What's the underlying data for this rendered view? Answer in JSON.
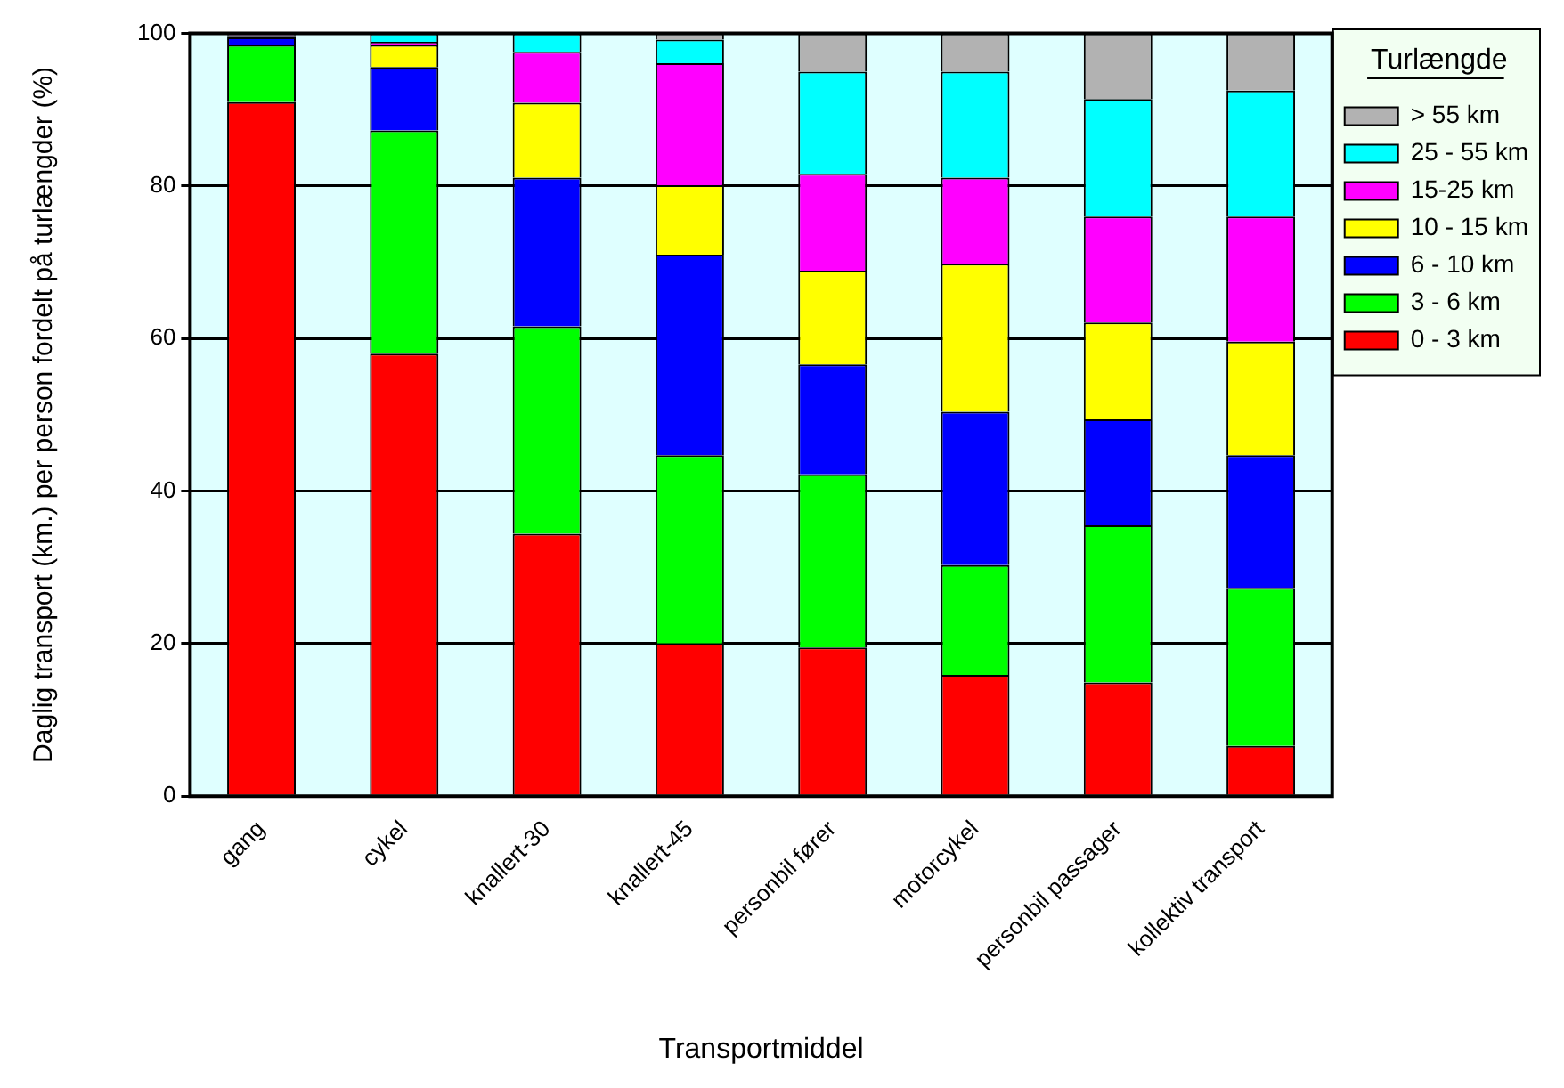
{
  "chart_data": {
    "type": "bar",
    "stacked": true,
    "xlabel": "Transportmiddel",
    "ylabel": "Daglig transport (km.) per person fordelt på turlængder (%)",
    "legend_title": "Turlængde",
    "legend": "right",
    "categories": [
      "gang",
      "cykel",
      "knallert-30",
      "knallert-45",
      "personbil fører",
      "motorcykel",
      "personbil passager",
      "kollektiv transport"
    ],
    "ylim": [
      0,
      100
    ],
    "yticks": [
      0,
      20,
      40,
      60,
      80,
      100
    ],
    "grid": "y",
    "series": [
      {
        "name": "0 - 3 km",
        "color": "#ff0000",
        "values": [
          91,
          58,
          34.4,
          20,
          19.5,
          15.9,
          14.9,
          6.6
        ]
      },
      {
        "name": "3 - 6 km",
        "color": "#00ff00",
        "values": [
          7.5,
          29.3,
          27.2,
          24.7,
          22.7,
          14.4,
          20.6,
          20.7
        ]
      },
      {
        "name": "6 - 10 km",
        "color": "#0000ff",
        "values": [
          1,
          8.3,
          19.5,
          26.3,
          14.4,
          20.1,
          13.9,
          17.4
        ]
      },
      {
        "name": "10 - 15 km",
        "color": "#ffff00",
        "values": [
          0.2,
          2.9,
          9.8,
          9.1,
          12.3,
          19.4,
          12.7,
          14.9
        ]
      },
      {
        "name": "15-25 km",
        "color": "#ff00ff",
        "values": [
          0.1,
          0.4,
          6.7,
          16,
          12.7,
          11.3,
          13.9,
          16.4
        ]
      },
      {
        "name": "25 - 55 km",
        "color": "#00ffff",
        "values": [
          null,
          1.1,
          2.4,
          3.1,
          13.4,
          13.9,
          15.4,
          16.5
        ]
      },
      {
        "name": "> 55 km",
        "color": "#b2b2b2",
        "values": [
          null,
          null,
          0,
          0.8,
          5,
          5,
          8.6,
          7.5
        ]
      }
    ]
  }
}
